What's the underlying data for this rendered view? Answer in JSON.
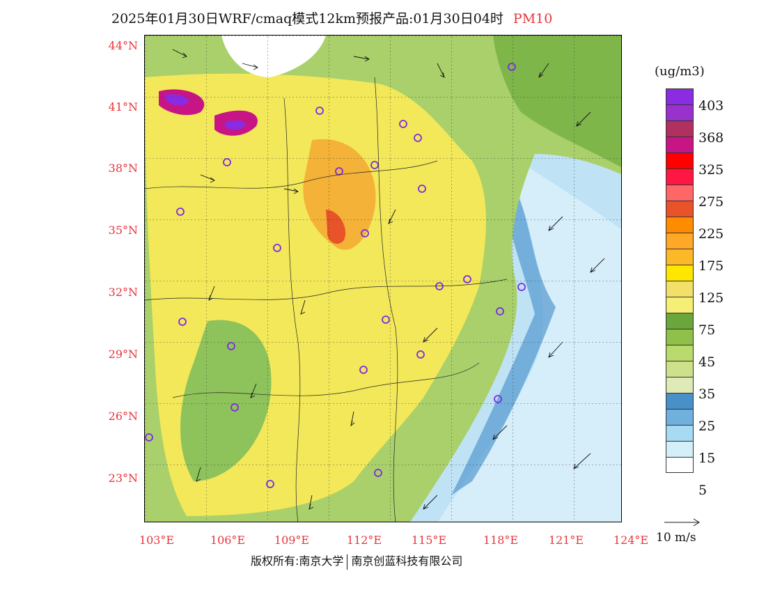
{
  "header": {
    "title": "2025年01月30日WRF/cmaq模式12km预报产品:01月30日04时",
    "pollutant": "PM10"
  },
  "map": {
    "lat_labels": [
      "44°N",
      "41°N",
      "38°N",
      "35°N",
      "32°N",
      "29°N",
      "26°N",
      "23°N"
    ],
    "lon_labels": [
      "103°E",
      "106°E",
      "109°E",
      "112°E",
      "115°E",
      "118°E",
      "121°E",
      "124°E"
    ],
    "colors": {
      "ocean_light": "#d6eefa",
      "ocean_mid": "#a8d8f0",
      "ocean_dark": "#4a90c8",
      "green": "#8ec25a",
      "yellow": "#f2e85a",
      "orange": "#f4a832",
      "purple": "#8a2be2"
    }
  },
  "legend": {
    "unit": "(ug/m3)",
    "colors": [
      "#8b2be2",
      "#9932cc",
      "#b03060",
      "#c71585",
      "#ff0000",
      "#ff1744",
      "#ff6666",
      "#e8532a",
      "#ff8c00",
      "#ffa726",
      "#fdb827",
      "#ffe600",
      "#f2e06a",
      "#f5f075",
      "#6aa63a",
      "#8fc04a",
      "#bada6e",
      "#cde08a",
      "#dfeab8",
      "#4a90c8",
      "#6fb0dd",
      "#a8daf3",
      "#d5effa",
      "#ffffff"
    ],
    "labels": [
      "403",
      "368",
      "325",
      "275",
      "225",
      "175",
      "125",
      "75",
      "45",
      "35",
      "25",
      "15",
      "5"
    ]
  },
  "wind": {
    "label": "10 m/s"
  },
  "footer": {
    "copyright_left": "版权所有:南京大学",
    "copyright_right": "南京创蓝科技有限公司"
  }
}
